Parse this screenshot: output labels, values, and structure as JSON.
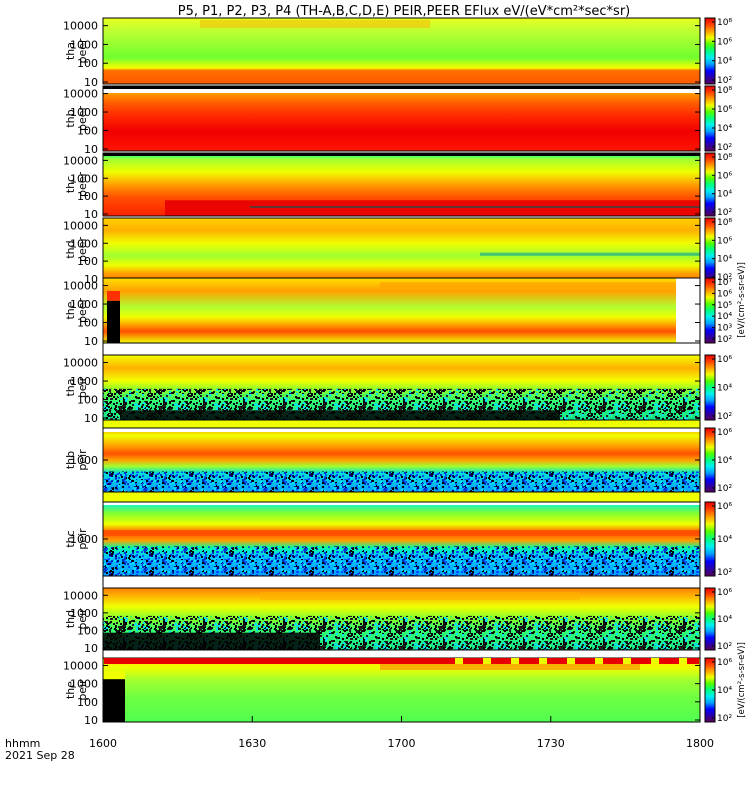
{
  "title": "P5, P1, P2, P3, P4 (TH-A,B,C,D,E) PEIR,PEER EFlux eV/(eV*cm²*sec*sr)",
  "footer": {
    "label_line1": "hhmm",
    "label_line2": "2021 Sep 28"
  },
  "chart_data": {
    "type": "heatmap",
    "title": "P5, P1, P2, P3, P4 (TH-A,B,C,D,E) PEIR,PEER EFlux eV/(eV*cm²*sec*sr)",
    "x_ticks": [
      "1600",
      "1630",
      "1700",
      "1730",
      "1800"
    ],
    "x_range": [
      "16:00",
      "18:00"
    ],
    "date": "2021 Sep 28",
    "colorbar_label": "[eV/(cm²-s-sr-eV)]",
    "colorbar_label_lower": "[eV/(cm²-s-sr-eV)]",
    "colorscale": [
      "#5a005a",
      "#2a00a8",
      "#0000ff",
      "#00a0ff",
      "#00f0f0",
      "#00ff80",
      "#50ff00",
      "#f0ff00",
      "#ffa000",
      "#ff4000",
      "#e80000"
    ],
    "panels": [
      {
        "probe": "tha",
        "species": "peer",
        "yticks": [
          "10",
          "100",
          "1000",
          "10000"
        ],
        "ylog": true,
        "cb_ticks": [
          "10²",
          "10⁴",
          "10⁶",
          "10⁸"
        ],
        "cb_range": [
          2,
          8
        ]
      },
      {
        "probe": "thb",
        "species": "peer",
        "yticks": [
          "10",
          "100",
          "1000",
          "10000"
        ],
        "ylog": true,
        "cb_ticks": [
          "10²",
          "10⁴",
          "10⁶",
          "10⁸"
        ],
        "cb_range": [
          2,
          8
        ]
      },
      {
        "probe": "thc",
        "species": "peer",
        "yticks": [
          "10",
          "100",
          "1000",
          "10000"
        ],
        "ylog": true,
        "cb_ticks": [
          "10²",
          "10⁴",
          "10⁶",
          "10⁸"
        ],
        "cb_range": [
          2,
          8
        ]
      },
      {
        "probe": "thd",
        "species": "peer",
        "yticks": [
          "10",
          "100",
          "1000",
          "10000"
        ],
        "ylog": true,
        "cb_ticks": [
          "10²",
          "10⁴",
          "10⁶",
          "10⁸"
        ],
        "cb_range": [
          2,
          8
        ]
      },
      {
        "probe": "the",
        "species": "peer",
        "yticks": [
          "10",
          "100",
          "1000",
          "10000"
        ],
        "ylog": true,
        "cb_ticks": [
          "10²",
          "10³",
          "10⁴",
          "10⁵",
          "10⁶",
          "10⁷"
        ],
        "cb_range": [
          2,
          7
        ]
      },
      {
        "probe": "tha",
        "species": "peir",
        "yticks": [
          "10",
          "100",
          "1000",
          "10000"
        ],
        "ylog": true,
        "cb_ticks": [
          "10²",
          "10⁴",
          "10⁶"
        ],
        "cb_range": [
          2,
          7
        ]
      },
      {
        "probe": "thb",
        "species": "peir",
        "yticks": [
          "1000"
        ],
        "ylog": true,
        "cb_ticks": [
          "10²",
          "10⁴",
          "10⁶"
        ],
        "cb_range": [
          2,
          7
        ]
      },
      {
        "probe": "thc",
        "species": "peir",
        "yticks": [
          "1000"
        ],
        "ylog": true,
        "cb_ticks": [
          "10²",
          "10⁴",
          "10⁶"
        ],
        "cb_range": [
          2,
          7
        ]
      },
      {
        "probe": "thd",
        "species": "peir",
        "yticks": [
          "10",
          "100",
          "1000",
          "10000"
        ],
        "ylog": true,
        "cb_ticks": [
          "10²",
          "10⁴",
          "10⁶"
        ],
        "cb_range": [
          2,
          7
        ]
      },
      {
        "probe": "the",
        "species": "peir",
        "yticks": [
          "10",
          "100",
          "1000",
          "10000"
        ],
        "ylog": true,
        "cb_ticks": [
          "10²",
          "10⁴",
          "10⁶"
        ],
        "cb_range": [
          2,
          7
        ]
      }
    ]
  }
}
